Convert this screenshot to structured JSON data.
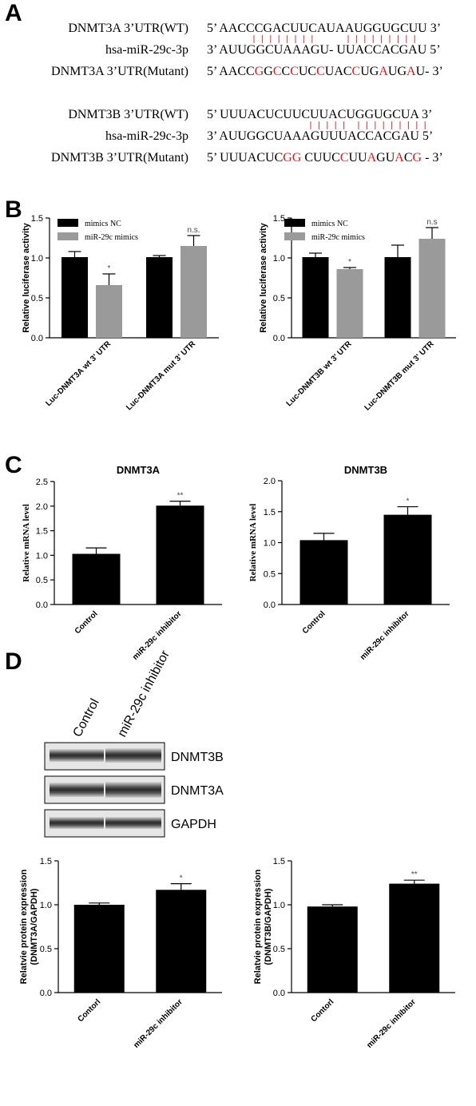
{
  "panels": {
    "A": {
      "letter": "A",
      "groups": [
        {
          "rows": [
            {
              "label": "DNMT3A 3’UTR(WT)",
              "tokens": [
                {
                  "t": "5’ AACCCGACUUCAUAAUGGUGCUU 3’"
                }
              ]
            },
            {
              "label": "hsa-miR-29c-3p",
              "tokens": [
                {
                  "t": "3’ AUUGGCUAAAGU- UUACCACGAU 5’"
                }
              ]
            },
            {
              "label": "DNMT3A 3’UTR(Mutant)",
              "tokens": [
                {
                  "t": "5’ AACC"
                },
                {
                  "t": "G",
                  "m": true
                },
                {
                  "t": "G"
                },
                {
                  "t": "C",
                  "m": true
                },
                {
                  "t": "C"
                },
                {
                  "t": "C",
                  "m": true
                },
                {
                  "t": "UC"
                },
                {
                  "t": "C",
                  "m": true
                },
                {
                  "t": "UAC"
                },
                {
                  "t": "C",
                  "m": true
                },
                {
                  "t": "UG"
                },
                {
                  "t": "A",
                  "m": true
                },
                {
                  "t": "UG"
                },
                {
                  "t": "A",
                  "m": true
                },
                {
                  "t": "U- 3’"
                }
              ]
            }
          ]
        },
        {
          "rows": [
            {
              "label": "DNMT3B 3’UTR(WT)",
              "tokens": [
                {
                  "t": "5’  UUUACUCUUCUUACUGGUGCUA 3’"
                }
              ]
            },
            {
              "label": "hsa-miR-29c-3p",
              "tokens": [
                {
                  "t": "3’  AUUGGCUAAAGUUUACCACGAU 5’"
                }
              ]
            },
            {
              "label": "DNMT3B 3’UTR(Mutant)",
              "tokens": [
                {
                  "t": "5’  UUUACUC"
                },
                {
                  "t": "GG",
                  "m": true
                },
                {
                  "t": " CUUC"
                },
                {
                  "t": "C",
                  "m": true
                },
                {
                  "t": "UU"
                },
                {
                  "t": "A",
                  "m": true
                },
                {
                  "t": "GU"
                },
                {
                  "t": "A",
                  "m": true
                },
                {
                  "t": "C"
                },
                {
                  "t": "G",
                  "m": true
                },
                {
                  "t": " - 3’"
                }
              ]
            }
          ]
        }
      ]
    },
    "B": {
      "letter": "B"
    },
    "C": {
      "letter": "C"
    },
    "D": {
      "letter": "D",
      "blot": {
        "lanes": [
          "Control",
          "miR-29c inhibitor"
        ],
        "bands": [
          "DNMT3B",
          "DNMT3A",
          "GAPDH"
        ]
      }
    }
  },
  "chart_data": [
    {
      "id": "B-left",
      "type": "bar",
      "ylabel": "Relative  luciferase activity",
      "ylim": [
        0,
        1.5
      ],
      "yticks": [
        "0.0",
        "0.5",
        "1.0",
        "1.5"
      ],
      "categories": [
        "Luc-DNMT3A wt 3' UTR",
        "Luc-DNMT3A mut 3' UTR"
      ],
      "series": [
        {
          "name": "mimics NC",
          "values": [
            1.01,
            1.01
          ],
          "errors": [
            0.07,
            0.02
          ],
          "color": "#000000"
        },
        {
          "name": "miR-29c mimics",
          "values": [
            0.66,
            1.15
          ],
          "errors": [
            0.14,
            0.13
          ],
          "color": "#9a9a9a"
        }
      ],
      "annotations": [
        {
          "category": 0,
          "series": 1,
          "text": "*"
        },
        {
          "category": 1,
          "series": 1,
          "text": "n.s."
        }
      ],
      "legend": "top-left"
    },
    {
      "id": "B-right",
      "type": "bar",
      "ylabel": "Relative  luciferase activity",
      "ylim": [
        0,
        1.5
      ],
      "yticks": [
        "0.0",
        "0.5",
        "1.0",
        "1.5"
      ],
      "categories": [
        "Luc-DNMT3B wt 3' UTR",
        "Luc-DNMT3B mut 3' UTR"
      ],
      "series": [
        {
          "name": "mimics NC",
          "values": [
            1.01,
            1.01
          ],
          "errors": [
            0.05,
            0.15
          ],
          "color": "#000000"
        },
        {
          "name": "miR-29c mimics",
          "values": [
            0.86,
            1.24
          ],
          "errors": [
            0.02,
            0.14
          ],
          "color": "#9a9a9a"
        }
      ],
      "annotations": [
        {
          "category": 0,
          "series": 1,
          "text": "*"
        },
        {
          "category": 1,
          "series": 1,
          "text": "n.s"
        }
      ],
      "legend": "top-left"
    },
    {
      "id": "C-left",
      "type": "bar",
      "title": "DNMT3A",
      "ylabel": "Relative mRNA level",
      "ylim": [
        0,
        2.5
      ],
      "yticks": [
        "0.0",
        "0.5",
        "1.0",
        "1.5",
        "2.0",
        "2.5"
      ],
      "categories": [
        "Control",
        "miR-29c inhibitor"
      ],
      "values": [
        1.03,
        2.01
      ],
      "errors": [
        0.12,
        0.09
      ],
      "annotations": [
        "",
        "**"
      ]
    },
    {
      "id": "C-right",
      "type": "bar",
      "title": "DNMT3B",
      "ylabel": "Relative mRNA level",
      "ylim": [
        0,
        2.0
      ],
      "yticks": [
        "0.0",
        "0.5",
        "1.0",
        "1.5",
        "2.0"
      ],
      "categories": [
        "Control",
        "miR-29c inhibitor"
      ],
      "values": [
        1.04,
        1.45
      ],
      "errors": [
        0.11,
        0.13
      ],
      "annotations": [
        "",
        "*"
      ]
    },
    {
      "id": "D-left",
      "type": "bar",
      "ylabel_lines": [
        "Relatvie protein expression",
        "(DNMT3A/GAPDH)"
      ],
      "ylim": [
        0,
        1.5
      ],
      "yticks": [
        "0.0",
        "0.5",
        "1.0",
        "1.5"
      ],
      "categories": [
        "Contorl",
        "miR-29c inhibitor"
      ],
      "values": [
        1.0,
        1.17
      ],
      "errors": [
        0.02,
        0.07
      ],
      "annotations": [
        "",
        "*"
      ]
    },
    {
      "id": "D-right",
      "type": "bar",
      "ylabel_lines": [
        "Relatvie protein expression",
        "(DNMT3B/GAPDH)"
      ],
      "ylim": [
        0,
        1.5
      ],
      "yticks": [
        "0.0",
        "0.5",
        "1.0",
        "1.5"
      ],
      "categories": [
        "Contorl",
        "miR-29c inhibitor"
      ],
      "values": [
        0.98,
        1.24
      ],
      "errors": [
        0.02,
        0.04
      ],
      "annotations": [
        "",
        "**"
      ]
    }
  ]
}
